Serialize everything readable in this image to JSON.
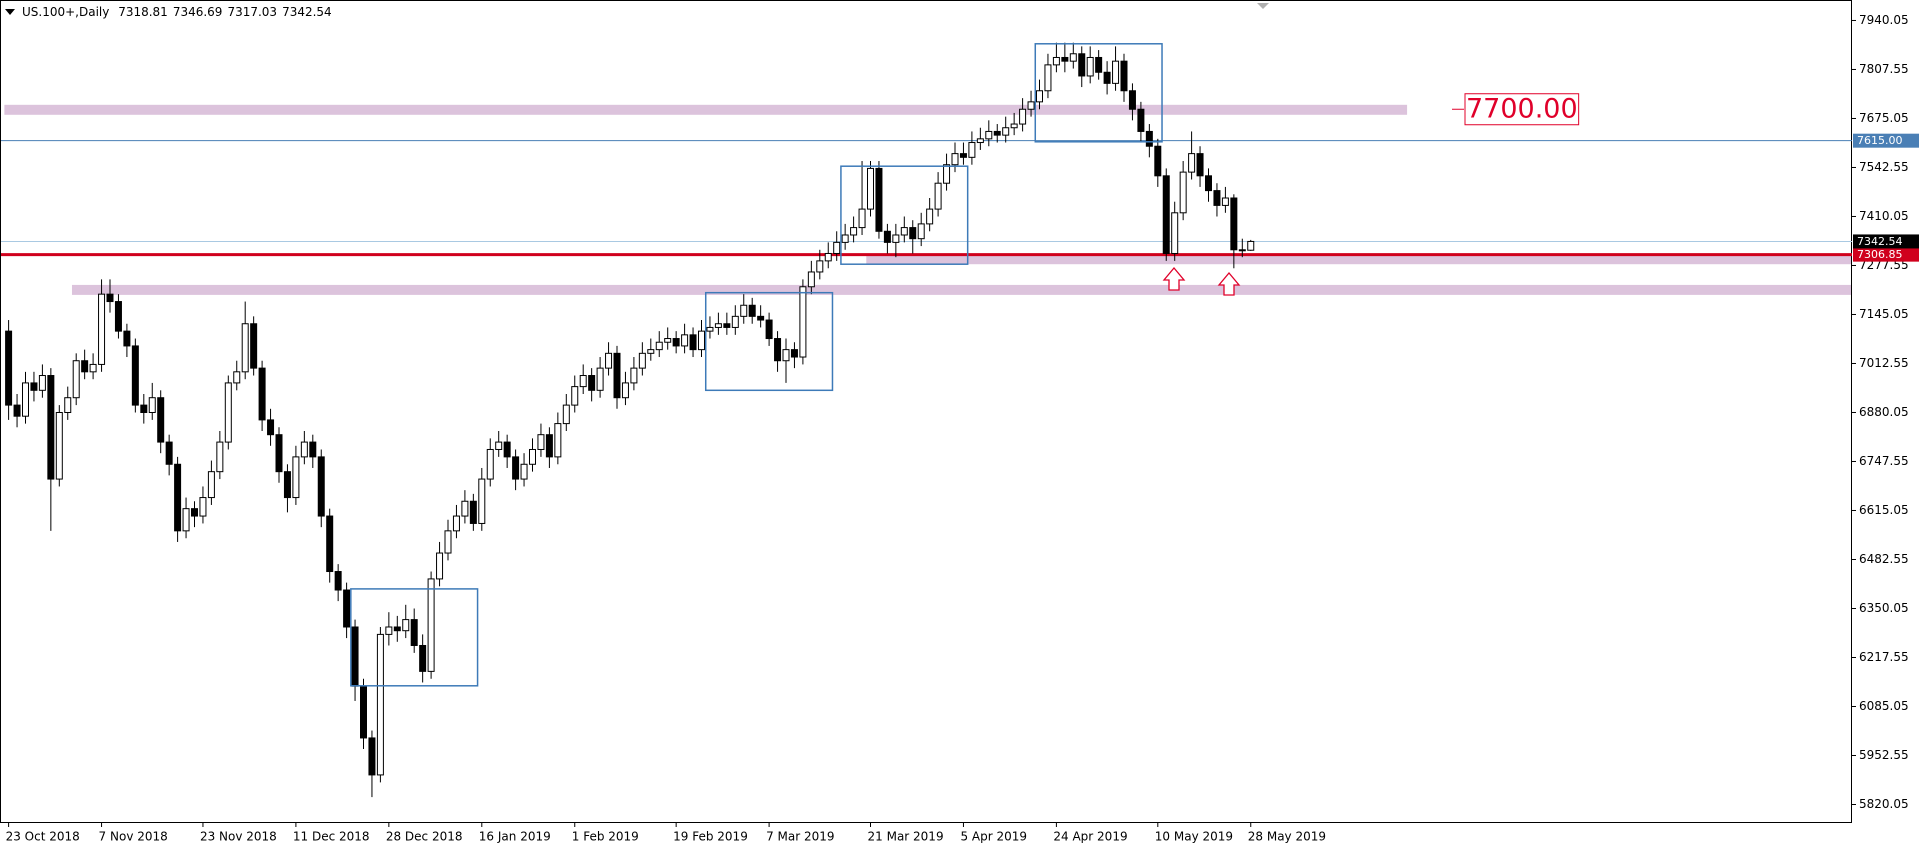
{
  "chart_data": {
    "type": "candlestick",
    "title": "US.100+,Daily",
    "categories": [
      "23 Oct 2018",
      null,
      null,
      null,
      null,
      null,
      null,
      null,
      null,
      null,
      null,
      "7 Nov 2018",
      null,
      null,
      null,
      null,
      null,
      null,
      null,
      null,
      null,
      null,
      null,
      "23 Nov 2018",
      null,
      null,
      null,
      null,
      null,
      null,
      null,
      null,
      null,
      null,
      "11 Dec 2018",
      null,
      null,
      null,
      null,
      null,
      null,
      null,
      null,
      null,
      null,
      "28 Dec 2018",
      null,
      null,
      null,
      null,
      null,
      null,
      null,
      null,
      null,
      null,
      "16 Jan 2019",
      null,
      null,
      null,
      null,
      null,
      null,
      null,
      null,
      null,
      null,
      "1 Feb 2019",
      null,
      null,
      null,
      null,
      null,
      null,
      null,
      null,
      null,
      null,
      null,
      "19 Feb 2019",
      null,
      null,
      null,
      null,
      null,
      null,
      null,
      null,
      null,
      null,
      "7 Mar 2019",
      null,
      null,
      null,
      null,
      null,
      null,
      null,
      null,
      null,
      null,
      null,
      "21 Mar 2019",
      null,
      null,
      null,
      null,
      null,
      null,
      null,
      null,
      null,
      null,
      "5 Apr 2019",
      null,
      null,
      null,
      null,
      null,
      null,
      null,
      null,
      null,
      null,
      "24 Apr 2019",
      null,
      null,
      null,
      null,
      null,
      null,
      null,
      null,
      null,
      null,
      null,
      "10 May 2019",
      null,
      null,
      null,
      null,
      null,
      null,
      null,
      null,
      null,
      null,
      "28 May 2019"
    ],
    "open": [
      7100,
      6900,
      6870,
      6960,
      6940,
      6980,
      6700,
      6880,
      6920,
      7020,
      6990,
      7010,
      7200,
      7180,
      7100,
      7060,
      6900,
      6880,
      6920,
      6800,
      6740,
      6560,
      6620,
      6600,
      6650,
      6720,
      6800,
      6960,
      6990,
      7120,
      7000,
      6860,
      6820,
      6720,
      6650,
      6760,
      6800,
      6760,
      6600,
      6450,
      6400,
      6300,
      6140,
      6000,
      5900,
      6280,
      6300,
      6290,
      6320,
      6250,
      6180,
      6430,
      6500,
      6560,
      6600,
      6640,
      6580,
      6700,
      6780,
      6800,
      6760,
      6700,
      6740,
      6780,
      6820,
      6760,
      6850,
      6900,
      6950,
      6980,
      6940,
      7000,
      7040,
      6920,
      6960,
      7000,
      7040,
      7050,
      7070,
      7080,
      7060,
      7090,
      7050,
      7100,
      7110,
      7120,
      7110,
      7140,
      7170,
      7140,
      7130,
      7080,
      7020,
      7050,
      7030,
      7220,
      7260,
      7290,
      7310,
      7340,
      7360,
      7380,
      7430,
      7540,
      7370,
      7340,
      7360,
      7380,
      7350,
      7390,
      7430,
      7500,
      7550,
      7580,
      7570,
      7610,
      7620,
      7640,
      7630,
      7650,
      7660,
      7700,
      7720,
      7750,
      7820,
      7840,
      7830,
      7850,
      7790,
      7840,
      7800,
      7770,
      7830,
      7750,
      7700,
      7640,
      7600,
      7520,
      7310,
      7420,
      7530,
      7580,
      7520,
      7480,
      7440,
      7460,
      7320,
      7318.81
    ],
    "high": [
      7130,
      6930,
      6990,
      6990,
      7010,
      7000,
      6900,
      6950,
      7040,
      7050,
      7040,
      7240,
      7240,
      7200,
      7120,
      7080,
      6930,
      6960,
      6940,
      6820,
      6760,
      6650,
      6640,
      6680,
      6750,
      6830,
      6980,
      7020,
      7180,
      7140,
      7020,
      6890,
      6840,
      6740,
      6790,
      6830,
      6820,
      6780,
      6620,
      6470,
      6420,
      6320,
      6160,
      6020,
      6300,
      6340,
      6330,
      6360,
      6350,
      6280,
      6450,
      6530,
      6590,
      6630,
      6670,
      6660,
      6730,
      6810,
      6830,
      6820,
      6780,
      6770,
      6810,
      6850,
      6840,
      6880,
      6930,
      6980,
      7010,
      7000,
      7030,
      7070,
      7060,
      6990,
      7030,
      7070,
      7080,
      7100,
      7110,
      7100,
      7120,
      7110,
      7130,
      7140,
      7150,
      7150,
      7170,
      7200,
      7190,
      7170,
      7150,
      7100,
      7080,
      7070,
      7240,
      7290,
      7320,
      7340,
      7370,
      7390,
      7410,
      7560,
      7560,
      7560,
      7390,
      7390,
      7410,
      7400,
      7420,
      7460,
      7530,
      7580,
      7610,
      7610,
      7640,
      7650,
      7670,
      7660,
      7680,
      7690,
      7730,
      7750,
      7780,
      7850,
      7880,
      7880,
      7880,
      7870,
      7870,
      7860,
      7830,
      7870,
      7850,
      7770,
      7720,
      7660,
      7620,
      7540,
      7450,
      7560,
      7640,
      7600,
      7540,
      7500,
      7490,
      7470,
      7350,
      7346.69
    ],
    "low": [
      6860,
      6840,
      6850,
      6910,
      6920,
      6560,
      6680,
      6860,
      6900,
      6970,
      6970,
      6990,
      7150,
      7080,
      7030,
      6880,
      6850,
      6860,
      6770,
      6710,
      6530,
      6540,
      6570,
      6580,
      6630,
      6700,
      6780,
      6940,
      6970,
      6980,
      6830,
      6790,
      6690,
      6610,
      6630,
      6740,
      6730,
      6570,
      6420,
      6370,
      6270,
      6100,
      5970,
      5840,
      5880,
      6250,
      6260,
      6270,
      6230,
      6150,
      6160,
      6410,
      6480,
      6540,
      6580,
      6560,
      6560,
      6680,
      6760,
      6730,
      6670,
      6680,
      6720,
      6760,
      6730,
      6740,
      6830,
      6880,
      6930,
      6910,
      6920,
      6980,
      6890,
      6900,
      6940,
      6980,
      7020,
      7030,
      7050,
      7040,
      7040,
      7030,
      7030,
      7080,
      7090,
      7090,
      7090,
      7120,
      7120,
      7110,
      7060,
      6990,
      6960,
      7000,
      7010,
      7200,
      7240,
      7270,
      7290,
      7320,
      7340,
      7360,
      7410,
      7350,
      7310,
      7300,
      7340,
      7310,
      7330,
      7370,
      7410,
      7480,
      7530,
      7550,
      7550,
      7590,
      7600,
      7610,
      7610,
      7630,
      7640,
      7680,
      7700,
      7730,
      7800,
      7800,
      7810,
      7760,
      7770,
      7780,
      7740,
      7750,
      7720,
      7670,
      7610,
      7570,
      7490,
      7290,
      7290,
      7400,
      7510,
      7490,
      7450,
      7410,
      7420,
      7270,
      7300,
      7317.03
    ],
    "close": [
      6900,
      6870,
      6960,
      6940,
      6980,
      6700,
      6880,
      6920,
      7020,
      6990,
      7010,
      7200,
      7180,
      7100,
      7060,
      6900,
      6880,
      6920,
      6800,
      6740,
      6560,
      6620,
      6600,
      6650,
      6720,
      6800,
      6960,
      6990,
      7120,
      7000,
      6860,
      6820,
      6720,
      6650,
      6760,
      6800,
      6760,
      6600,
      6450,
      6400,
      6300,
      6140,
      6000,
      5900,
      6280,
      6300,
      6290,
      6320,
      6250,
      6180,
      6430,
      6500,
      6560,
      6600,
      6640,
      6580,
      6700,
      6780,
      6800,
      6760,
      6700,
      6740,
      6780,
      6820,
      6760,
      6850,
      6900,
      6950,
      6980,
      6940,
      7000,
      7040,
      6920,
      6960,
      7000,
      7040,
      7050,
      7070,
      7080,
      7060,
      7090,
      7050,
      7100,
      7110,
      7120,
      7110,
      7140,
      7170,
      7140,
      7130,
      7080,
      7020,
      7050,
      7030,
      7220,
      7260,
      7290,
      7310,
      7340,
      7360,
      7380,
      7430,
      7540,
      7370,
      7340,
      7360,
      7380,
      7350,
      7390,
      7430,
      7500,
      7550,
      7580,
      7570,
      7610,
      7620,
      7640,
      7630,
      7650,
      7660,
      7700,
      7720,
      7750,
      7820,
      7840,
      7830,
      7850,
      7790,
      7840,
      7800,
      7770,
      7830,
      7750,
      7700,
      7640,
      7600,
      7520,
      7310,
      7420,
      7530,
      7580,
      7520,
      7480,
      7440,
      7460,
      7320,
      7319,
      7342.54
    ],
    "up_color": "#ffffff",
    "down_color": "#000000",
    "wick_color": "#000000",
    "bid_line_color": "#a9c9e2",
    "bid_label_color": "#000000",
    "ylim": [
      5770,
      7990
    ],
    "yticks": [
      5820.05,
      5952.55,
      6085.05,
      6217.55,
      6350.05,
      6482.55,
      6615.05,
      6747.55,
      6880.05,
      7012.55,
      7145.05,
      7277.55,
      7410.05,
      7542.55,
      7675.05,
      7807.55,
      7940.05
    ],
    "zones": [
      {
        "low": 7685,
        "high": 7712,
        "from": 0,
        "to": 165,
        "color": "#dcc3dc"
      },
      {
        "low": 7281,
        "high": 7310,
        "from": 102,
        "to": 220,
        "color": "#dcc3dc"
      },
      {
        "low": 7198,
        "high": 7225,
        "from": 8,
        "to": 220,
        "color": "#dcc3dc"
      }
    ],
    "boxes": [
      {
        "low": 6141,
        "high": 6403,
        "from": 41,
        "to": 55,
        "color": "#3d7ab8"
      },
      {
        "low": 6940,
        "high": 7204,
        "from": 83,
        "to": 97,
        "color": "#3d7ab8"
      },
      {
        "low": 7281,
        "high": 7546,
        "from": 99,
        "to": 113,
        "color": "#3d7ab8"
      },
      {
        "low": 7612,
        "high": 7877,
        "from": 122,
        "to": 136,
        "color": "#3d7ab8"
      }
    ],
    "hlines": [
      {
        "value": 7615,
        "label": "7615.00",
        "color": "#4a7fb5",
        "width": 1
      },
      {
        "value": 7306.85,
        "label": "7306.85",
        "color": "#d0001c",
        "width": 3
      }
    ],
    "annotation": {
      "value": 7700,
      "label": "7700.00",
      "color": "#e0002a"
    }
  }
}
